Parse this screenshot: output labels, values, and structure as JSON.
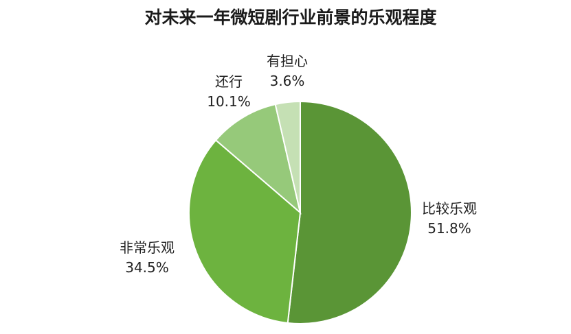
{
  "chart_data": {
    "type": "pie",
    "title": "对未来一年微短剧行业前景的乐观程度",
    "categories": [
      "比较乐观",
      "非常乐观",
      "还行",
      "有担心"
    ],
    "values": [
      51.8,
      34.5,
      10.1,
      3.6
    ],
    "value_labels": [
      "51.8%",
      "34.5%",
      "10.1%",
      "3.6%"
    ],
    "colors": [
      "#5a9536",
      "#6db33f",
      "#96c97a",
      "#c5e0b4"
    ],
    "start_angle_deg": 0,
    "direction": "clockwise",
    "legend": "none"
  }
}
